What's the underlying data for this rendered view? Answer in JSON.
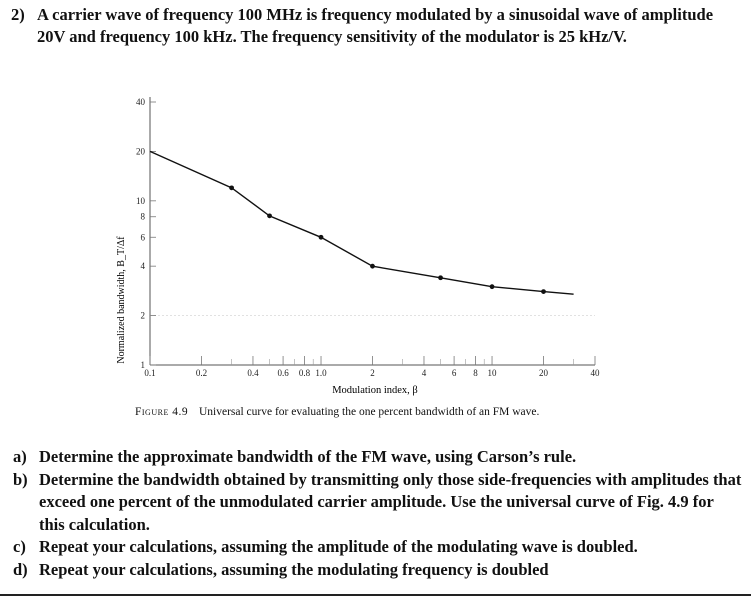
{
  "question": {
    "number": "2)",
    "text": "A carrier wave of frequency 100 MHz is frequency modulated by a sinusoidal wave of amplitude 20V and frequency 100 kHz. The frequency sensitivity of the modulator is 25 kHz/V."
  },
  "chart_data": {
    "type": "line",
    "title": "",
    "xlabel": "Modulation index, β",
    "ylabel": "Normalized bandwidth, B_T/Δf",
    "x_scale": "log",
    "y_scale": "log",
    "xlim": [
      0.1,
      40
    ],
    "ylim": [
      1,
      40
    ],
    "x_tick_labels": [
      "0.1",
      "0.2",
      "0.4",
      "0.6",
      "0.8",
      "1.0",
      "2",
      "4",
      "6",
      "8",
      "10",
      "20",
      "40"
    ],
    "x_tick_values": [
      0.1,
      0.2,
      0.4,
      0.6,
      0.8,
      1.0,
      2,
      4,
      6,
      8,
      10,
      20,
      40
    ],
    "y_tick_labels": [
      "1",
      "2",
      "4",
      "6",
      "8",
      "10",
      "20",
      "40"
    ],
    "y_tick_values": [
      1,
      2,
      4,
      6,
      8,
      10,
      20,
      40
    ],
    "series": [
      {
        "name": "Universal curve",
        "x": [
          0.1,
          0.3,
          0.5,
          1.0,
          2.0,
          5.0,
          10,
          20,
          30
        ],
        "y": [
          20,
          12,
          8.1,
          6.0,
          4.0,
          3.4,
          3.0,
          2.8,
          2.7
        ]
      }
    ],
    "markers_x": [
      0.3,
      0.5,
      1.0,
      2.0,
      5.0,
      10,
      20
    ]
  },
  "caption": {
    "figure_label": "Figure 4.9",
    "text": "Universal curve for evaluating the one percent bandwidth of an FM wave."
  },
  "parts": [
    {
      "label": "a)",
      "text": "Determine the approximate bandwidth of the FM wave, using Carson’s rule."
    },
    {
      "label": "b)",
      "text": "Determine the bandwidth obtained by transmitting only those side-frequencies with amplitudes that exceed one percent of the unmodulated carrier amplitude. Use the universal curve of Fig. 4.9 for this calculation."
    },
    {
      "label": "c)",
      "text": "Repeat your calculations, assuming the amplitude of the modulating wave is doubled."
    },
    {
      "label": "d)",
      "text": "Repeat your calculations, assuming the modulating frequency is doubled"
    }
  ]
}
